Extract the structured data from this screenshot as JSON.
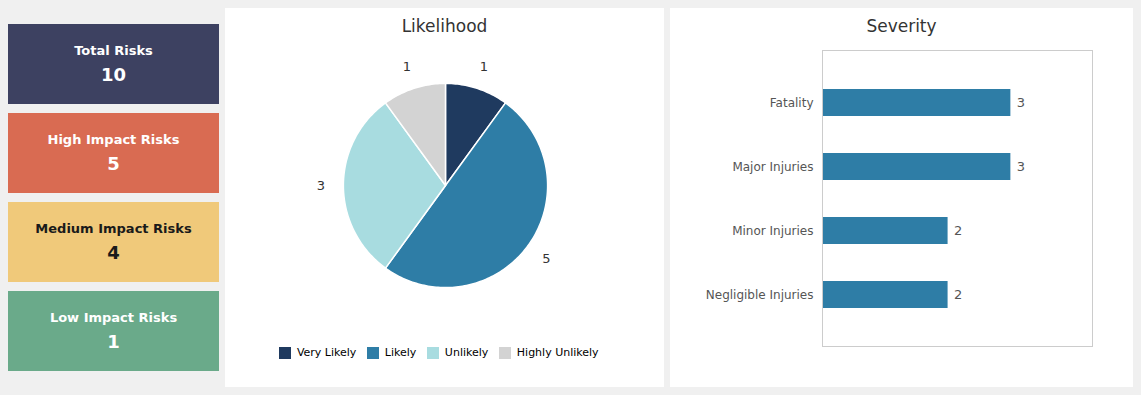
{
  "chart_data": [
    {
      "type": "kpi",
      "categories": [
        "Total Risks",
        "High Impact Risks",
        "Medium Impact Risks",
        "Low Impact Risks"
      ],
      "values": [
        10,
        5,
        4,
        1
      ],
      "colors": [
        "#3d4161",
        "#d96b52",
        "#f0c97a",
        "#6aaa8a"
      ]
    },
    {
      "type": "pie",
      "title": "Likelihood",
      "categories": [
        "Very Likely",
        "Likely",
        "Unlikely",
        "Highly Unlikely"
      ],
      "values": [
        1,
        5,
        3,
        1
      ],
      "colors": [
        "#1f3a5f",
        "#2e7da6",
        "#a8dce0",
        "#d3d3d3"
      ],
      "data_labels": true,
      "legend": "bottom"
    },
    {
      "type": "bar",
      "title": "Severity",
      "orientation": "horizontal",
      "categories": [
        "Fatality",
        "Major Injuries",
        "Minor Injuries",
        "Negligible Injuries"
      ],
      "values": [
        3,
        3,
        2,
        2
      ],
      "color": "#2e7da6",
      "xlim": [
        0,
        4.3
      ],
      "data_labels": true,
      "tick_labels": "y"
    }
  ]
}
